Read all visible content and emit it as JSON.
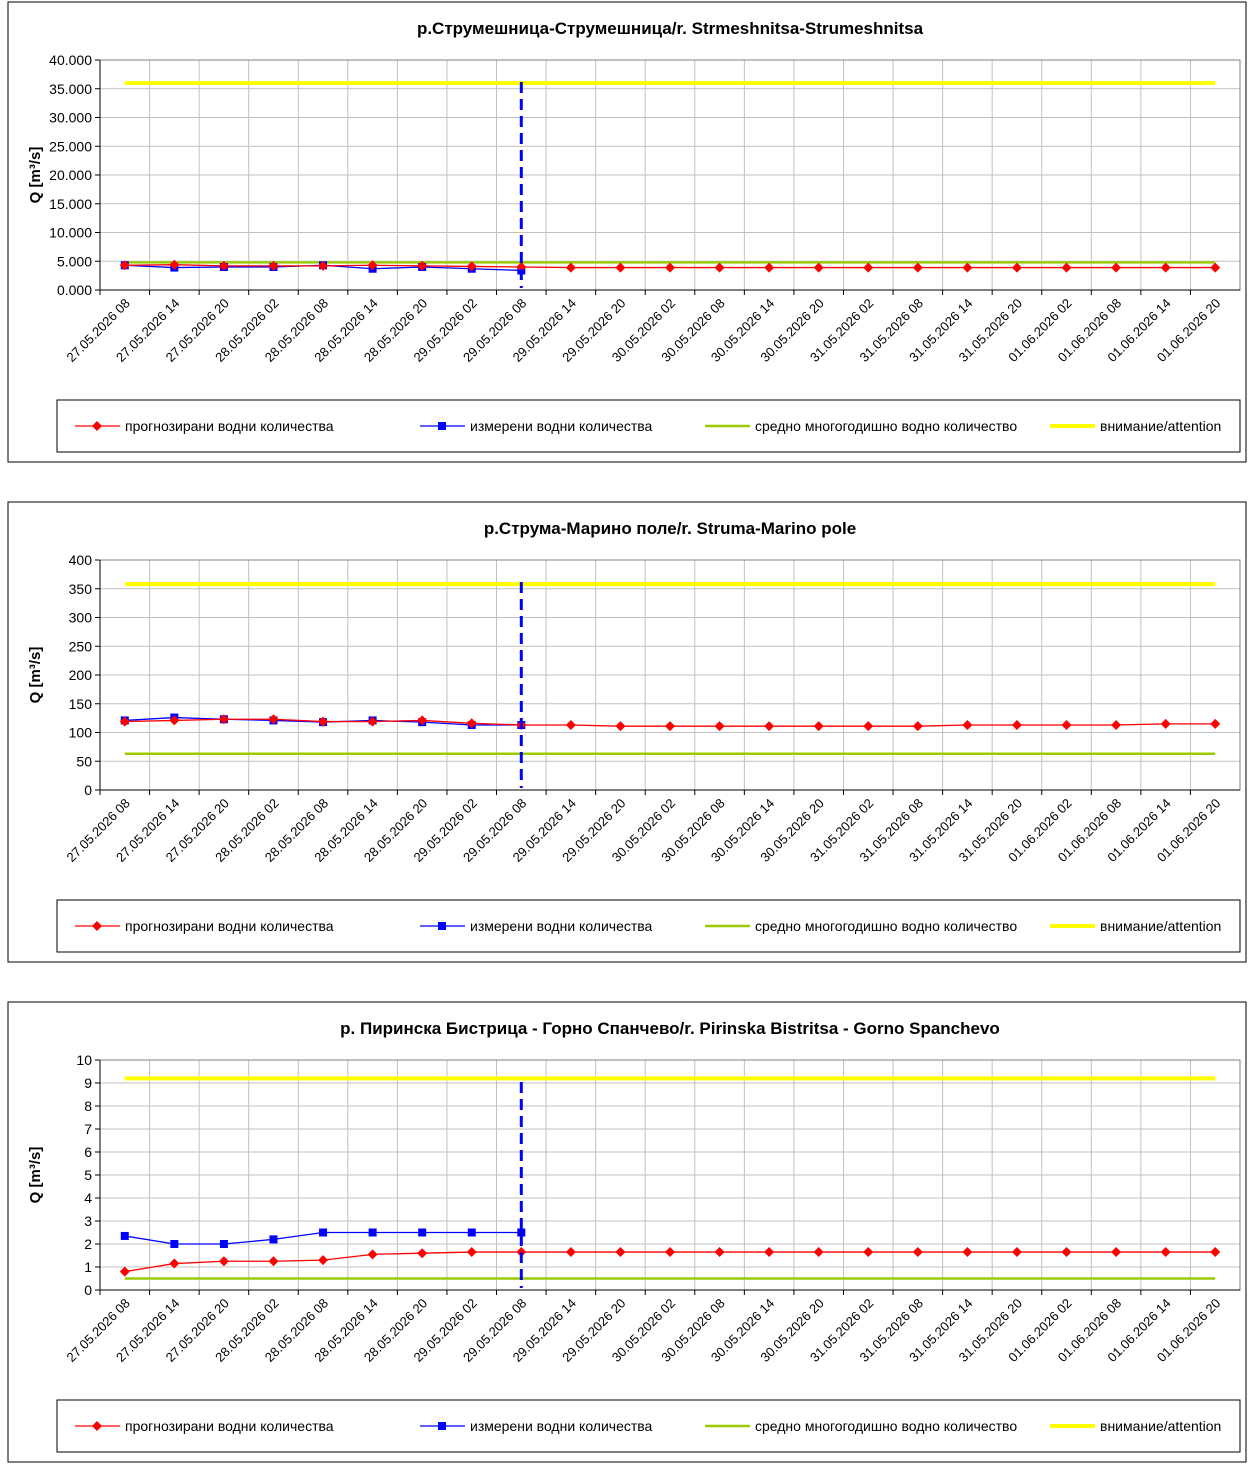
{
  "chart_data": [
    {
      "type": "line",
      "title": "р.Струмешница-Струмешница/r. Strmeshnitsa-Strumeshnitsa",
      "ylabel": "Q [m³/s]",
      "categories": [
        "27.05.2026 08",
        "27.05.2026 14",
        "27.05.2026 20",
        "28.05.2026 02",
        "28.05.2026 08",
        "28.05.2026 14",
        "28.05.2026 20",
        "29.05.2026 02",
        "29.05.2026 08",
        "29.05.2026 14",
        "29.05.2026 20",
        "30.05.2026 02",
        "30.05.2026 08",
        "30.05.2026 14",
        "30.05.2026 20",
        "31.05.2026 02",
        "31.05.2026 08",
        "31.05.2026 14",
        "31.05.2026 20",
        "01.06.2026 02",
        "01.06.2026 08",
        "01.06.2026 14",
        "01.06.2026 20"
      ],
      "ylim": [
        0,
        40
      ],
      "yticks": [
        {
          "value": 0,
          "label": "0.000"
        },
        {
          "value": 5,
          "label": "5.000"
        },
        {
          "value": 10,
          "label": "10.000"
        },
        {
          "value": 15,
          "label": "15.000"
        },
        {
          "value": 20,
          "label": "20.000"
        },
        {
          "value": 25,
          "label": "25.000"
        },
        {
          "value": 30,
          "label": "30.000"
        },
        {
          "value": 35,
          "label": "35.000"
        },
        {
          "value": 40,
          "label": "40.000"
        }
      ],
      "grid": true,
      "vline": {
        "x": "29.05.2026 08",
        "color": "#0000ff"
      },
      "series": [
        {
          "name": "прогнозирани водни количества",
          "color": "#ff0000",
          "marker": "diamond",
          "values": [
            4.3,
            4.4,
            4.2,
            4.2,
            4.2,
            4.3,
            4.2,
            4.1,
            4.0,
            3.9,
            3.9,
            3.9,
            3.9,
            3.9,
            3.9,
            3.9,
            3.9,
            3.9,
            3.9,
            3.9,
            3.9,
            3.9,
            3.9
          ]
        },
        {
          "name": "измерени водни количества",
          "color": "#0000ff",
          "marker": "square",
          "values": [
            4.3,
            3.9,
            4.0,
            4.0,
            4.3,
            3.7,
            4.0,
            3.7,
            3.4,
            null,
            null,
            null,
            null,
            null,
            null,
            null,
            null,
            null,
            null,
            null,
            null,
            null,
            null
          ]
        },
        {
          "name": "средно многогодишно водно количество",
          "color": "#99cc00",
          "values": [
            4.8,
            4.8,
            4.8,
            4.8,
            4.8,
            4.8,
            4.8,
            4.8,
            4.8,
            4.8,
            4.8,
            4.8,
            4.8,
            4.8,
            4.8,
            4.8,
            4.8,
            4.8,
            4.8,
            4.8,
            4.8,
            4.8,
            4.8
          ]
        },
        {
          "name": "внимание/attention",
          "color": "#ffff00",
          "values": [
            36,
            36,
            36,
            36,
            36,
            36,
            36,
            36,
            36,
            36,
            36,
            36,
            36,
            36,
            36,
            36,
            36,
            36,
            36,
            36,
            36,
            36,
            36
          ]
        }
      ]
    },
    {
      "type": "line",
      "title": "р.Струма-Марино поле/r. Struma-Marino pole",
      "ylabel": "Q [m³/s]",
      "categories": [
        "27.05.2026 08",
        "27.05.2026 14",
        "27.05.2026 20",
        "28.05.2026 02",
        "28.05.2026 08",
        "28.05.2026 14",
        "28.05.2026 20",
        "29.05.2026 02",
        "29.05.2026 08",
        "29.05.2026 14",
        "29.05.2026 20",
        "30.05.2026 02",
        "30.05.2026 08",
        "30.05.2026 14",
        "30.05.2026 20",
        "31.05.2026 02",
        "31.05.2026 08",
        "31.05.2026 14",
        "31.05.2026 20",
        "01.06.2026 02",
        "01.06.2026 08",
        "01.06.2026 14",
        "01.06.2026 20"
      ],
      "ylim": [
        0,
        400
      ],
      "yticks": [
        0,
        50,
        100,
        150,
        200,
        250,
        300,
        350,
        400
      ],
      "grid": true,
      "vline": {
        "x": "29.05.2026 08",
        "color": "#0000ff"
      },
      "series": [
        {
          "name": "прогнозирани водни количества",
          "color": "#ff0000",
          "marker": "diamond",
          "values": [
            119,
            121,
            123,
            123,
            119,
            119,
            121,
            116,
            113,
            113,
            111,
            111,
            111,
            111,
            111,
            111,
            111,
            113,
            113,
            113,
            113,
            115,
            115
          ]
        },
        {
          "name": "измерени водни количества",
          "color": "#0000ff",
          "marker": "square",
          "values": [
            121,
            126,
            123,
            121,
            118,
            121,
            118,
            113,
            113,
            null,
            null,
            null,
            null,
            null,
            null,
            null,
            null,
            null,
            null,
            null,
            null,
            null,
            null
          ]
        },
        {
          "name": "средно многогодишно водно количество",
          "color": "#99cc00",
          "values": [
            63,
            63,
            63,
            63,
            63,
            63,
            63,
            63,
            63,
            63,
            63,
            63,
            63,
            63,
            63,
            63,
            63,
            63,
            63,
            63,
            63,
            63,
            63
          ]
        },
        {
          "name": "внимание/attention",
          "color": "#ffff00",
          "values": [
            358,
            358,
            358,
            358,
            358,
            358,
            358,
            358,
            358,
            358,
            358,
            358,
            358,
            358,
            358,
            358,
            358,
            358,
            358,
            358,
            358,
            358,
            358
          ]
        }
      ]
    },
    {
      "type": "line",
      "title": "р. Пиринска Бистрица - Горно Спанчево/r. Pirinska Bistritsa - Gorno Spanchevo",
      "ylabel": "Q [m³/s]",
      "categories": [
        "27.05.2026 08",
        "27.05.2026 14",
        "27.05.2026 20",
        "28.05.2026 02",
        "28.05.2026 08",
        "28.05.2026 14",
        "28.05.2026 20",
        "29.05.2026 02",
        "29.05.2026 08",
        "29.05.2026 14",
        "29.05.2026 20",
        "30.05.2026 02",
        "30.05.2026 08",
        "30.05.2026 14",
        "30.05.2026 20",
        "31.05.2026 02",
        "31.05.2026 08",
        "31.05.2026 14",
        "31.05.2026 20",
        "01.06.2026 02",
        "01.06.2026 08",
        "01.06.2026 14",
        "01.06.2026 20"
      ],
      "ylim": [
        0,
        10
      ],
      "yticks": [
        0,
        1,
        2,
        3,
        4,
        5,
        6,
        7,
        8,
        9,
        10
      ],
      "grid": true,
      "vline": {
        "x": "29.05.2026 08",
        "color": "#0000ff"
      },
      "series": [
        {
          "name": "прогнозирани водни количества",
          "color": "#ff0000",
          "marker": "diamond",
          "values": [
            0.8,
            1.15,
            1.25,
            1.25,
            1.3,
            1.55,
            1.6,
            1.65,
            1.65,
            1.65,
            1.65,
            1.65,
            1.65,
            1.65,
            1.65,
            1.65,
            1.65,
            1.65,
            1.65,
            1.65,
            1.65,
            1.65,
            1.65
          ]
        },
        {
          "name": "измерени водни количества",
          "color": "#0000ff",
          "marker": "square",
          "values": [
            2.35,
            2.0,
            2.0,
            2.2,
            2.5,
            2.5,
            2.5,
            2.5,
            2.5,
            null,
            null,
            null,
            null,
            null,
            null,
            null,
            null,
            null,
            null,
            null,
            null,
            null,
            null
          ]
        },
        {
          "name": "средно многогодишно водно количество",
          "color": "#99cc00",
          "values": [
            0.5,
            0.5,
            0.5,
            0.5,
            0.5,
            0.5,
            0.5,
            0.5,
            0.5,
            0.5,
            0.5,
            0.5,
            0.5,
            0.5,
            0.5,
            0.5,
            0.5,
            0.5,
            0.5,
            0.5,
            0.5,
            0.5,
            0.5
          ]
        },
        {
          "name": "внимание/attention",
          "color": "#ffff00",
          "values": [
            9.2,
            9.2,
            9.2,
            9.2,
            9.2,
            9.2,
            9.2,
            9.2,
            9.2,
            9.2,
            9.2,
            9.2,
            9.2,
            9.2,
            9.2,
            9.2,
            9.2,
            9.2,
            9.2,
            9.2,
            9.2,
            9.2,
            9.2
          ]
        }
      ]
    }
  ]
}
